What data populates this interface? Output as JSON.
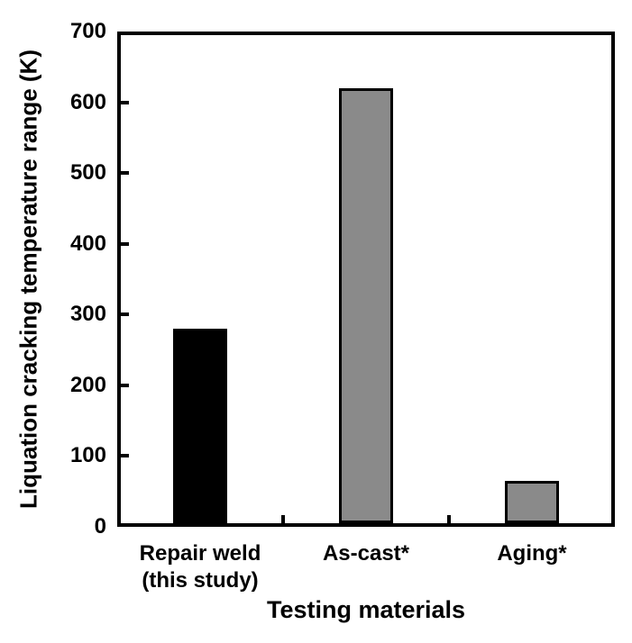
{
  "chart_data": {
    "type": "bar",
    "title": "",
    "xlabel": "Testing materials",
    "ylabel": "Liquation cracking temperature range (K)",
    "categories": [
      "Repair weld (this study)",
      "As-cast*",
      "Aging*"
    ],
    "category_label_lines": [
      [
        "Repair weld",
        "(this study)"
      ],
      [
        "As-cast*"
      ],
      [
        "Aging*"
      ]
    ],
    "values": [
      280,
      620,
      65
    ],
    "bar_colors": [
      "#000000",
      "#8a8a8a",
      "#8a8a8a"
    ],
    "bar_border_color": "#000000",
    "ylim": [
      0,
      700
    ],
    "yticks": [
      0,
      100,
      200,
      300,
      400,
      500,
      600,
      700
    ],
    "grid": false,
    "legend_position": "none",
    "axis_color": "#000000",
    "background": "#ffffff"
  }
}
